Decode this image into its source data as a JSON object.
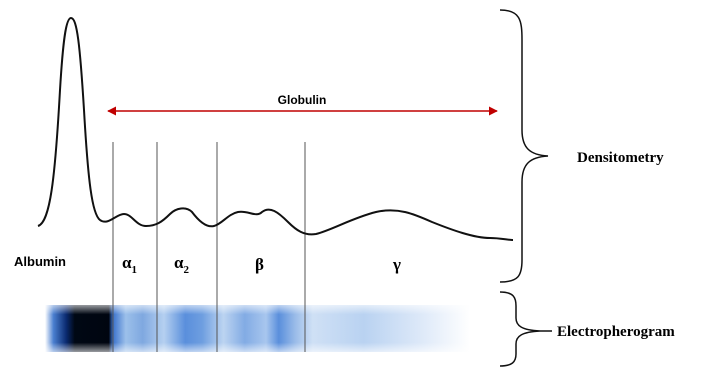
{
  "diagram": {
    "globulin": "Globulin",
    "albumin": "Albumin",
    "fractions": [
      {
        "symbol": "α",
        "subscript": "1"
      },
      {
        "symbol": "α",
        "subscript": "2"
      },
      {
        "symbol": "β"
      },
      {
        "symbol": "γ"
      }
    ],
    "densitometry": "Densitometry",
    "electropherogram": "Electropherogram"
  }
}
